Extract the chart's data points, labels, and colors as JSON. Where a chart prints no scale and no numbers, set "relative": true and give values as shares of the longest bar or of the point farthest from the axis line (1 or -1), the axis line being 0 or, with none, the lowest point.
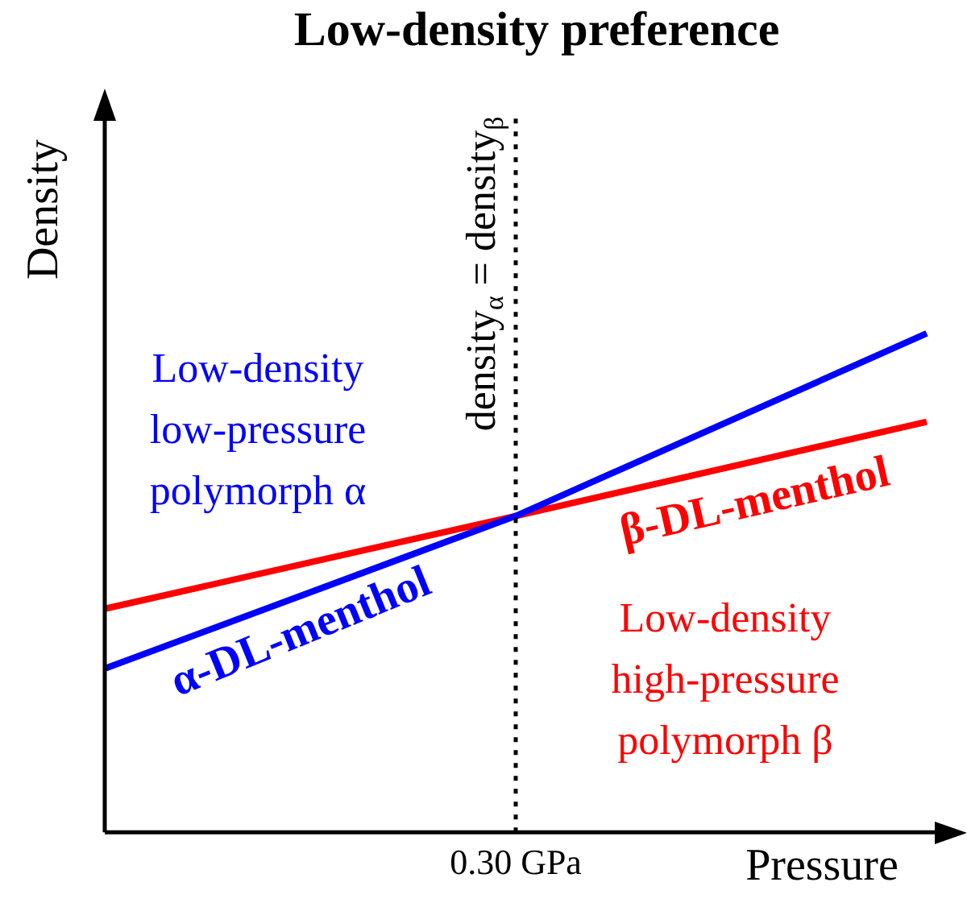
{
  "chart_data": {
    "type": "line",
    "title": "Low-density preference",
    "xlabel": "Pressure",
    "ylabel": "Density",
    "relative": true,
    "legend": false,
    "grid": false,
    "marker": "none",
    "line_style": "solid",
    "categories": [
      null,
      null,
      null
    ],
    "series": [
      {
        "name": "α-DL-menthol",
        "color": "#0000ff",
        "values": [
          0.328,
          0.634,
          1
        ]
      },
      {
        "name": "β-DL-menthol",
        "color": "#ff0000",
        "values": [
          0.448,
          0.634,
          0.823
        ]
      }
    ],
    "ref_lines": [
      {
        "axis": "x",
        "value": "0.30 GPa",
        "label": "density$_{α}$ = density$_{β}$",
        "color": "#000000",
        "line_style": "dotted"
      }
    ],
    "annotations": [
      "Low-density\nlow-pressure\npolymorph α",
      "Low-density\nhigh-pressure\npolymorph β"
    ]
  }
}
